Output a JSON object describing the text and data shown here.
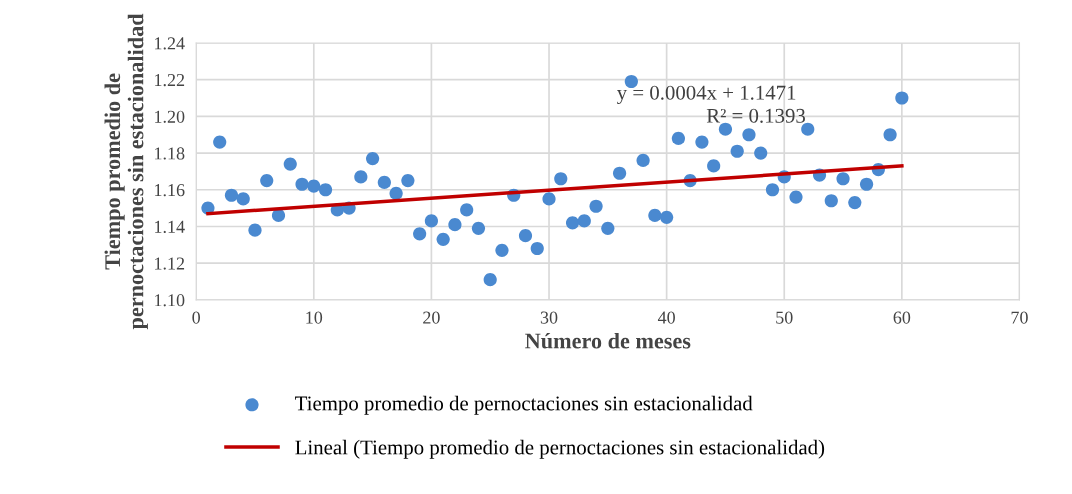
{
  "chart_data": {
    "type": "scatter",
    "xlabel": "Número de meses",
    "ylabel": "Tiempo promedio de pernoctaciones sin estacionalidad",
    "xlim": [
      0,
      70
    ],
    "xticks": [
      0,
      10,
      20,
      30,
      40,
      50,
      60,
      70
    ],
    "ylim": [
      1.1,
      1.24
    ],
    "yticks": [
      {
        "value": 1.1,
        "label": "1.10"
      },
      {
        "value": 1.12,
        "label": "1.12"
      },
      {
        "value": 1.14,
        "label": "1.14"
      },
      {
        "value": 1.16,
        "label": "1.16"
      },
      {
        "value": 1.18,
        "label": "1.18"
      },
      {
        "value": 1.2,
        "label": "1.20"
      },
      {
        "value": 1.22,
        "label": "1.22"
      },
      {
        "value": 1.24,
        "label": "1.24"
      }
    ],
    "grid": true,
    "legend": "bottom",
    "annotations": [
      "y = 0.0004x + 1.1471",
      "R² = 0.1393"
    ],
    "series": [
      {
        "name": "Tiempo promedio de pernoctaciones sin estacionalidad",
        "marker": "circle",
        "color": "#4a89d0",
        "x": [
          1,
          2,
          3,
          4,
          5,
          6,
          7,
          8,
          9,
          10,
          11,
          12,
          13,
          14,
          15,
          16,
          17,
          18,
          19,
          20,
          21,
          22,
          23,
          24,
          25,
          26,
          27,
          28,
          29,
          30,
          31,
          32,
          33,
          34,
          35,
          36,
          37,
          38,
          39,
          40,
          41,
          42,
          43,
          44,
          45,
          46,
          47,
          48,
          49,
          50,
          51,
          52,
          53,
          54,
          55,
          56,
          57,
          58,
          59,
          60
        ],
        "values": [
          1.15,
          1.186,
          1.157,
          1.155,
          1.138,
          1.165,
          1.146,
          1.174,
          1.163,
          1.162,
          1.16,
          1.149,
          1.15,
          1.167,
          1.177,
          1.164,
          1.158,
          1.165,
          1.136,
          1.143,
          1.133,
          1.141,
          1.149,
          1.139,
          1.111,
          1.127,
          1.157,
          1.135,
          1.128,
          1.155,
          1.166,
          1.142,
          1.143,
          1.151,
          1.139,
          1.169,
          1.219,
          1.176,
          1.146,
          1.145,
          1.188,
          1.165,
          1.186,
          1.173,
          1.193,
          1.181,
          1.19,
          1.18,
          1.16,
          1.167,
          1.156,
          1.193,
          1.168,
          1.154,
          1.166,
          1.153,
          1.163,
          1.171,
          1.19,
          1.21
        ]
      },
      {
        "name": "Lineal (Tiempo promedio de pernoctaciones sin estacionalidad)",
        "type": "line",
        "marker": "none",
        "color": "#c00000",
        "x": [
          1,
          60
        ],
        "values": [
          1.147,
          1.173
        ]
      }
    ]
  }
}
